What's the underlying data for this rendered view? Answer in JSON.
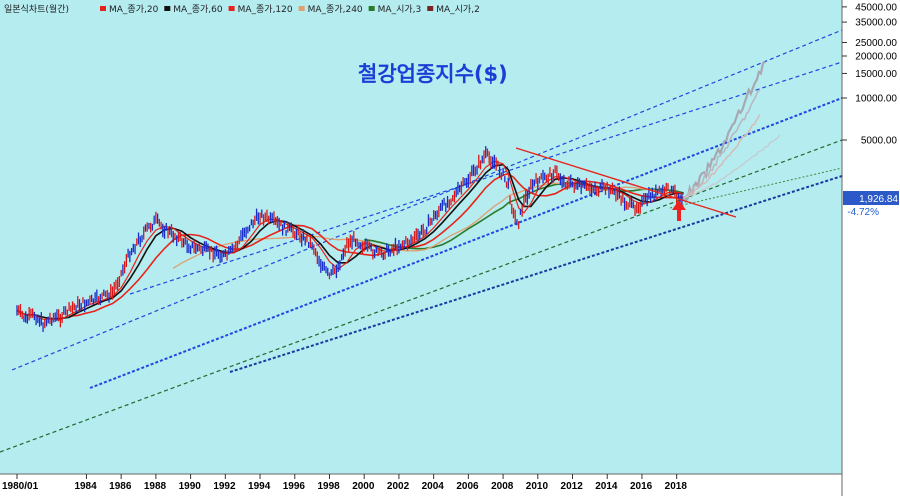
{
  "chart_data": {
    "type": "line",
    "title": "철강업종지수($)",
    "price_label": "일본식차트(월간)",
    "legend": [
      {
        "name": "MA_종가,20",
        "color": "#e8231a"
      },
      {
        "name": "MA_종가,60",
        "color": "#111111"
      },
      {
        "name": "MA_종가,120",
        "color": "#e8231a"
      },
      {
        "name": "MA_종가,240",
        "color": "#e0a070"
      },
      {
        "name": "MA_시가,3",
        "color": "#2a7a2a"
      },
      {
        "name": "MA_시가,2",
        "color": "#7a2424"
      }
    ],
    "y_scale": "log",
    "y_ticks": [
      45000,
      35000,
      25000,
      20000,
      15000,
      10000,
      5000
    ],
    "y_tick_labels": [
      "45000.00",
      "35000.00",
      "25000.00",
      "20000.00",
      "15000.00",
      "10000.00",
      "5000.00"
    ],
    "x_ticks": [
      "1980/01",
      "1984",
      "1986",
      "1988",
      "1990",
      "1992",
      "1994",
      "1996",
      "1998",
      "2000",
      "2002",
      "2004",
      "2006",
      "2008",
      "2010",
      "2012",
      "2014",
      "2016",
      "2018"
    ],
    "last_value": "1,926.84",
    "last_change": "-4.72%",
    "price_series": [
      {
        "x": 1980.0,
        "y": 300
      },
      {
        "x": 1980.5,
        "y": 260
      },
      {
        "x": 1981.0,
        "y": 280
      },
      {
        "x": 1981.5,
        "y": 240
      },
      {
        "x": 1982.0,
        "y": 265
      },
      {
        "x": 1982.5,
        "y": 270
      },
      {
        "x": 1983.0,
        "y": 300
      },
      {
        "x": 1983.5,
        "y": 330
      },
      {
        "x": 1984.0,
        "y": 340
      },
      {
        "x": 1984.5,
        "y": 355
      },
      {
        "x": 1985.0,
        "y": 380
      },
      {
        "x": 1985.5,
        "y": 400
      },
      {
        "x": 1986.0,
        "y": 550
      },
      {
        "x": 1986.5,
        "y": 780
      },
      {
        "x": 1987.0,
        "y": 950
      },
      {
        "x": 1987.5,
        "y": 1150
      },
      {
        "x": 1988.0,
        "y": 1320
      },
      {
        "x": 1988.5,
        "y": 1150
      },
      {
        "x": 1989.0,
        "y": 1050
      },
      {
        "x": 1989.5,
        "y": 950
      },
      {
        "x": 1990.0,
        "y": 860
      },
      {
        "x": 1990.5,
        "y": 830
      },
      {
        "x": 1991.0,
        "y": 800
      },
      {
        "x": 1991.5,
        "y": 780
      },
      {
        "x": 1992.0,
        "y": 730
      },
      {
        "x": 1992.5,
        "y": 820
      },
      {
        "x": 1993.0,
        "y": 1050
      },
      {
        "x": 1993.5,
        "y": 1250
      },
      {
        "x": 1994.0,
        "y": 1450
      },
      {
        "x": 1994.5,
        "y": 1350
      },
      {
        "x": 1995.0,
        "y": 1250
      },
      {
        "x": 1995.5,
        "y": 1150
      },
      {
        "x": 1996.0,
        "y": 1100
      },
      {
        "x": 1996.5,
        "y": 1000
      },
      {
        "x": 1997.0,
        "y": 900
      },
      {
        "x": 1997.5,
        "y": 650
      },
      {
        "x": 1998.0,
        "y": 520
      },
      {
        "x": 1998.5,
        "y": 620
      },
      {
        "x": 1999.0,
        "y": 900
      },
      {
        "x": 1999.5,
        "y": 980
      },
      {
        "x": 2000.0,
        "y": 860
      },
      {
        "x": 2000.5,
        "y": 800
      },
      {
        "x": 2001.0,
        "y": 760
      },
      {
        "x": 2001.5,
        "y": 820
      },
      {
        "x": 2002.0,
        "y": 880
      },
      {
        "x": 2002.5,
        "y": 920
      },
      {
        "x": 2003.0,
        "y": 1000
      },
      {
        "x": 2003.5,
        "y": 1150
      },
      {
        "x": 2004.0,
        "y": 1400
      },
      {
        "x": 2004.5,
        "y": 1650
      },
      {
        "x": 2005.0,
        "y": 1900
      },
      {
        "x": 2005.5,
        "y": 2200
      },
      {
        "x": 2006.0,
        "y": 2600
      },
      {
        "x": 2006.5,
        "y": 3200
      },
      {
        "x": 2007.0,
        "y": 3900
      },
      {
        "x": 2007.5,
        "y": 3500
      },
      {
        "x": 2008.0,
        "y": 2800
      },
      {
        "x": 2008.3,
        "y": 2300
      },
      {
        "x": 2008.6,
        "y": 1450
      },
      {
        "x": 2008.9,
        "y": 1300
      },
      {
        "x": 2009.2,
        "y": 1800
      },
      {
        "x": 2009.6,
        "y": 2300
      },
      {
        "x": 2010.0,
        "y": 2550
      },
      {
        "x": 2010.5,
        "y": 2700
      },
      {
        "x": 2011.0,
        "y": 2950
      },
      {
        "x": 2011.5,
        "y": 2500
      },
      {
        "x": 2012.0,
        "y": 2400
      },
      {
        "x": 2012.5,
        "y": 2300
      },
      {
        "x": 2013.0,
        "y": 2300
      },
      {
        "x": 2013.5,
        "y": 2200
      },
      {
        "x": 2014.0,
        "y": 2250
      },
      {
        "x": 2014.5,
        "y": 2100
      },
      {
        "x": 2015.0,
        "y": 1800
      },
      {
        "x": 2015.5,
        "y": 1650
      },
      {
        "x": 2016.0,
        "y": 1750
      },
      {
        "x": 2016.5,
        "y": 2000
      },
      {
        "x": 2017.0,
        "y": 2100
      },
      {
        "x": 2017.5,
        "y": 2200
      },
      {
        "x": 2018.0,
        "y": 2050
      },
      {
        "x": 2018.4,
        "y": 1926
      }
    ]
  }
}
